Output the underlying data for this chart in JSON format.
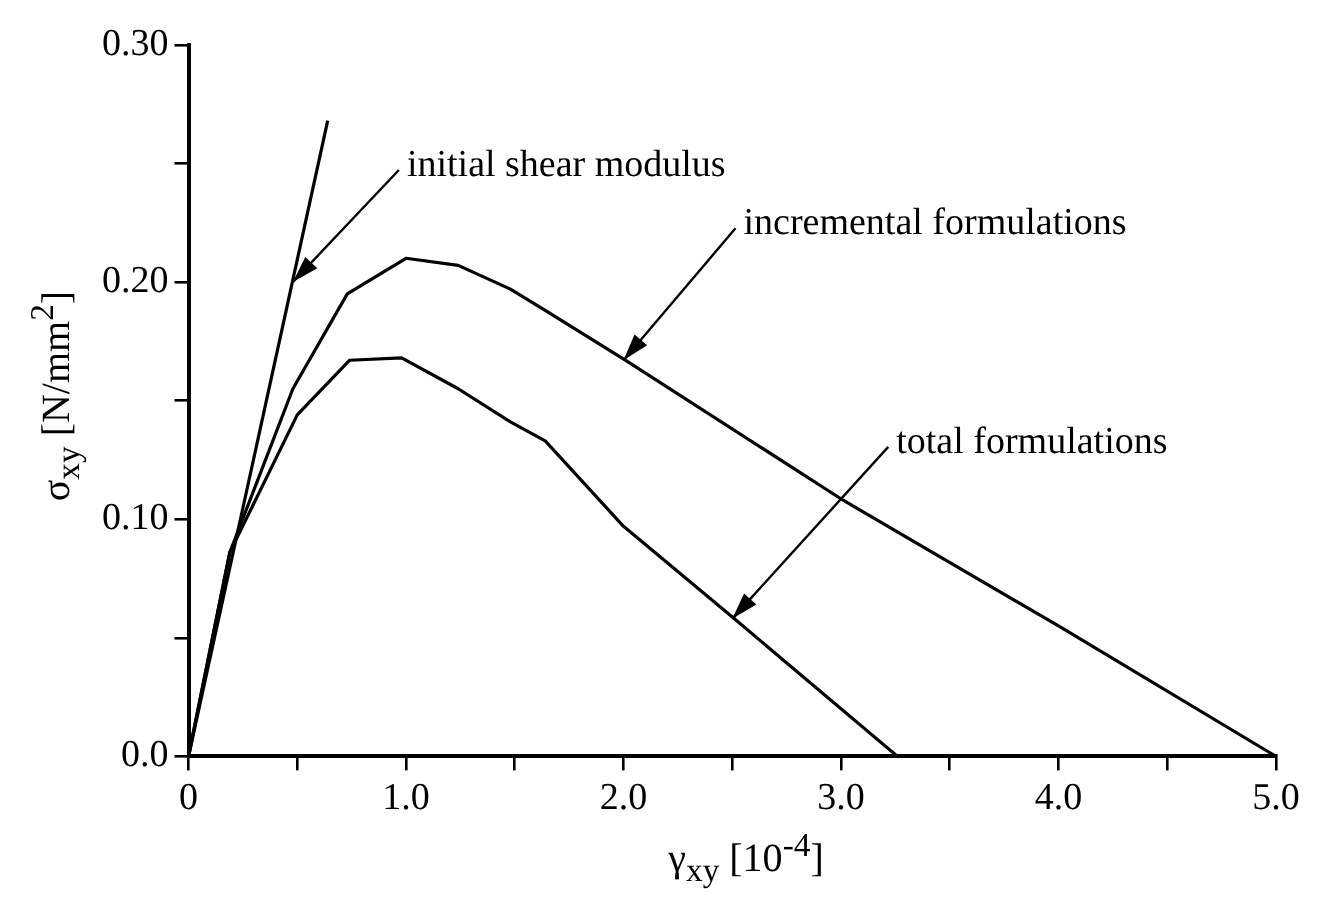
{
  "chart_data": {
    "type": "line",
    "xlabel": "γ$_{xy}$ [10$^{-4}$]",
    "ylabel": "σ$_{xy}$ [N/mm$^{2}$]",
    "series": [
      {
        "color": "#000000",
        "x": [
          0,
          0.64
        ],
        "values": [
          0,
          0.268
        ]
      },
      {
        "color": "#000000",
        "x": [
          0,
          0.19,
          0.48,
          0.73,
          1.0,
          1.24,
          1.48,
          1.64,
          2.01,
          3.01,
          4.0,
          5.0
        ],
        "values": [
          0,
          0.086,
          0.155,
          0.195,
          0.21,
          0.207,
          0.197,
          0.188,
          0.167,
          0.108,
          0.055,
          0
        ]
      },
      {
        "color": "#000000",
        "x": [
          0,
          0.19,
          0.5,
          0.74,
          0.98,
          1.24,
          1.48,
          1.64,
          2.0,
          2.51,
          3.26,
          3.48
        ],
        "values": [
          0,
          0.086,
          0.144,
          0.167,
          0.168,
          0.155,
          0.141,
          0.133,
          0.097,
          0.058,
          0,
          0
        ]
      }
    ],
    "annotations": [
      {
        "text": "initial shear modulus",
        "x": 0.48,
        "y": 0.2
      },
      {
        "text": "incremental formulations",
        "x": 2.0,
        "y": 0.167
      },
      {
        "text": "total formulations",
        "x": 2.5,
        "y": 0.058
      }
    ],
    "xlim": [
      0,
      5
    ],
    "ylim": [
      0,
      0.3
    ],
    "xticks": [
      0,
      {
        "value": 0.5,
        "label": null
      },
      {
        "value": 1,
        "label": "1.0"
      },
      {
        "value": 1.5,
        "label": null
      },
      {
        "value": 2,
        "label": "2.0"
      },
      {
        "value": 2.5,
        "label": null
      },
      {
        "value": 3,
        "label": "3.0"
      },
      {
        "value": 3.5,
        "label": null
      },
      {
        "value": 4,
        "label": "4.0"
      },
      {
        "value": 4.5,
        "label": null
      },
      {
        "value": 5,
        "label": "5.0"
      }
    ],
    "yticks": [
      {
        "value": 0,
        "label": "0.0"
      },
      {
        "value": 0.05,
        "label": null
      },
      {
        "value": 0.1,
        "label": "0.10"
      },
      {
        "value": 0.15,
        "label": null
      },
      {
        "value": 0.2,
        "label": "0.20"
      },
      {
        "value": 0.25,
        "label": null
      },
      {
        "value": 0.3,
        "label": "0.30"
      }
    ],
    "grid": false,
    "legend": false,
    "marker": "none",
    "line_style": "solid"
  }
}
